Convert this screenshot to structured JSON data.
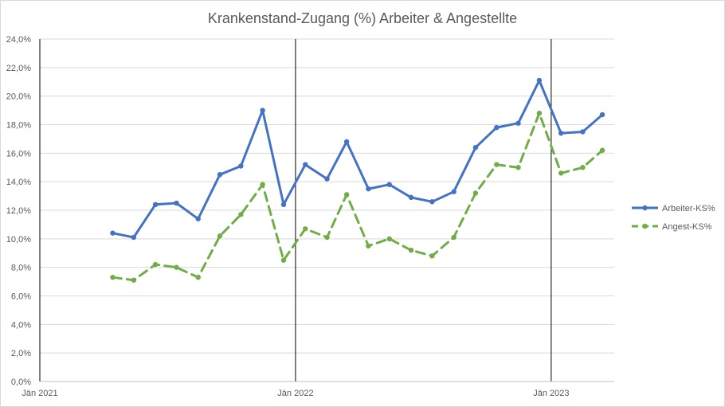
{
  "chart_data": {
    "type": "line",
    "title": "Krankenstand-Zugang (%) Arbeiter & Angestellte",
    "xlabel": "",
    "ylabel": "",
    "x_range": [
      "2021-01-01",
      "2023-04-01"
    ],
    "x_ticks": [
      {
        "date": "2021-01-01",
        "label": "Jän 2021"
      },
      {
        "date": "2022-01-01",
        "label": "Jän 2022"
      },
      {
        "date": "2023-01-01",
        "label": "Jän 2023"
      }
    ],
    "vertical_lines": [
      "2022-01-01",
      "2023-01-01"
    ],
    "ylim": [
      0,
      24
    ],
    "y_ticks": [
      {
        "value": 0,
        "label": "0,0%"
      },
      {
        "value": 2,
        "label": "2,0%"
      },
      {
        "value": 4,
        "label": "4,0%"
      },
      {
        "value": 6,
        "label": "6,0%"
      },
      {
        "value": 8,
        "label": "8,0%"
      },
      {
        "value": 10,
        "label": "10,0%"
      },
      {
        "value": 12,
        "label": "12,0%"
      },
      {
        "value": 14,
        "label": "14,0%"
      },
      {
        "value": 16,
        "label": "16,0%"
      },
      {
        "value": 18,
        "label": "18,0%"
      },
      {
        "value": 20,
        "label": "20,0%"
      },
      {
        "value": 22,
        "label": "22,0%"
      },
      {
        "value": 24,
        "label": "24,0%"
      }
    ],
    "grid": true,
    "legend_position": "right",
    "series": [
      {
        "name": "Arbeiter-KS%",
        "color": "#4472c4",
        "style": "solid",
        "points": [
          {
            "x": "2021-04-15",
            "y": 10.4
          },
          {
            "x": "2021-05-15",
            "y": 10.1
          },
          {
            "x": "2021-06-15",
            "y": 12.4
          },
          {
            "x": "2021-07-15",
            "y": 12.5
          },
          {
            "x": "2021-08-15",
            "y": 11.4
          },
          {
            "x": "2021-09-15",
            "y": 14.5
          },
          {
            "x": "2021-10-15",
            "y": 15.1
          },
          {
            "x": "2021-11-15",
            "y": 19.0
          },
          {
            "x": "2021-12-15",
            "y": 12.4
          },
          {
            "x": "2022-01-15",
            "y": 15.2
          },
          {
            "x": "2022-02-15",
            "y": 14.2
          },
          {
            "x": "2022-03-15",
            "y": 16.8
          },
          {
            "x": "2022-04-15",
            "y": 13.5
          },
          {
            "x": "2022-05-15",
            "y": 13.8
          },
          {
            "x": "2022-06-15",
            "y": 12.9
          },
          {
            "x": "2022-07-15",
            "y": 12.6
          },
          {
            "x": "2022-08-15",
            "y": 13.3
          },
          {
            "x": "2022-09-15",
            "y": 16.4
          },
          {
            "x": "2022-10-15",
            "y": 17.8
          },
          {
            "x": "2022-11-15",
            "y": 18.1
          },
          {
            "x": "2022-12-15",
            "y": 21.1
          },
          {
            "x": "2023-01-15",
            "y": 17.4
          },
          {
            "x": "2023-02-15",
            "y": 17.5
          },
          {
            "x": "2023-03-15",
            "y": 18.7
          }
        ]
      },
      {
        "name": "Angest-KS%",
        "color": "#70ad47",
        "style": "dashed",
        "points": [
          {
            "x": "2021-04-15",
            "y": 7.3
          },
          {
            "x": "2021-05-15",
            "y": 7.1
          },
          {
            "x": "2021-06-15",
            "y": 8.2
          },
          {
            "x": "2021-07-15",
            "y": 8.0
          },
          {
            "x": "2021-08-15",
            "y": 7.3
          },
          {
            "x": "2021-09-15",
            "y": 10.2
          },
          {
            "x": "2021-10-15",
            "y": 11.7
          },
          {
            "x": "2021-11-15",
            "y": 13.8
          },
          {
            "x": "2021-12-15",
            "y": 8.5
          },
          {
            "x": "2022-01-15",
            "y": 10.7
          },
          {
            "x": "2022-02-15",
            "y": 10.1
          },
          {
            "x": "2022-03-15",
            "y": 13.1
          },
          {
            "x": "2022-04-15",
            "y": 9.5
          },
          {
            "x": "2022-05-15",
            "y": 10.0
          },
          {
            "x": "2022-06-15",
            "y": 9.2
          },
          {
            "x": "2022-07-15",
            "y": 8.8
          },
          {
            "x": "2022-08-15",
            "y": 10.1
          },
          {
            "x": "2022-09-15",
            "y": 13.2
          },
          {
            "x": "2022-10-15",
            "y": 15.2
          },
          {
            "x": "2022-11-15",
            "y": 15.0
          },
          {
            "x": "2022-12-15",
            "y": 18.8
          },
          {
            "x": "2023-01-15",
            "y": 14.6
          },
          {
            "x": "2023-02-15",
            "y": 15.0
          },
          {
            "x": "2023-03-15",
            "y": 16.2
          }
        ]
      }
    ]
  }
}
